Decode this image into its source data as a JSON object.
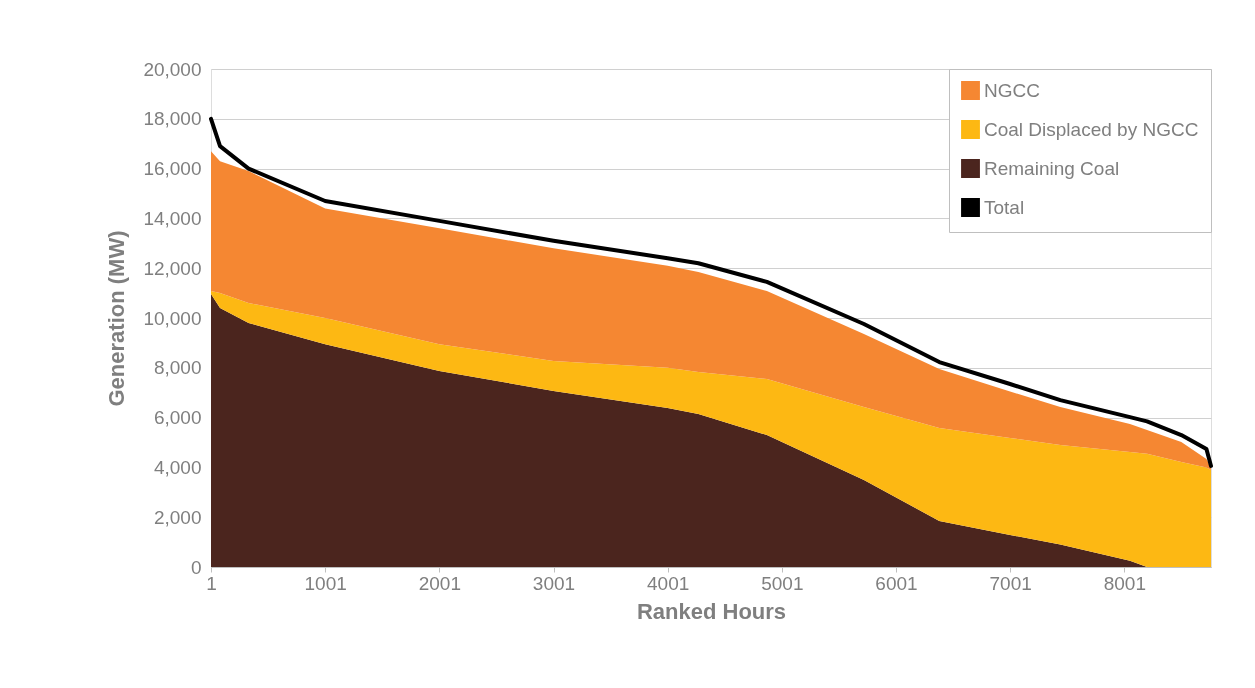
{
  "chart_data": {
    "type": "area",
    "stacked": true,
    "xlabel": "Ranked Hours",
    "ylabel": "Generation (MW)",
    "x": [
      1,
      80,
      330,
      1001,
      2001,
      3001,
      4001,
      4270,
      4870,
      5720,
      6380,
      7000,
      7440,
      8050,
      8200,
      8500,
      8720,
      8760
    ],
    "series": [
      {
        "name": "Remaining Coal",
        "color": "#4b251e",
        "values": [
          10960,
          10400,
          9800,
          8950,
          7870,
          7070,
          6390,
          6140,
          5300,
          3490,
          1850,
          1290,
          900,
          250,
          0,
          0,
          0,
          0
        ]
      },
      {
        "name": "Coal Displaced by NGCC",
        "color": "#fdb813",
        "values": [
          120,
          600,
          800,
          1050,
          1080,
          1200,
          1610,
          1690,
          2250,
          2940,
          3730,
          3890,
          4000,
          4370,
          4550,
          4220,
          4000,
          3900
        ]
      },
      {
        "name": "NGCC",
        "color": "#f58732",
        "values": [
          5620,
          5300,
          5300,
          4400,
          4650,
          4530,
          4100,
          4020,
          3530,
          2930,
          2370,
          1870,
          1530,
          1120,
          950,
          800,
          340,
          100
        ]
      },
      {
        "name": "Total",
        "type": "line",
        "color": "#000000",
        "values": [
          18000,
          16900,
          16000,
          14700,
          13900,
          13100,
          12400,
          12200,
          11450,
          9760,
          8230,
          7350,
          6700,
          6020,
          5850,
          5300,
          4740,
          4060
        ]
      }
    ],
    "xlim": [
      1,
      8760
    ],
    "xticks": [
      1,
      1001,
      2001,
      3001,
      4001,
      5001,
      6001,
      7001,
      8001
    ],
    "ylim": [
      0,
      20000
    ],
    "yticks": [
      {
        "value": 0,
        "label": "0"
      },
      {
        "value": 2000,
        "label": "2,000"
      },
      {
        "value": 4000,
        "label": "4,000"
      },
      {
        "value": 6000,
        "label": "6,000"
      },
      {
        "value": 8000,
        "label": "8,000"
      },
      {
        "value": 10000,
        "label": "10,000"
      },
      {
        "value": 12000,
        "label": "12,000"
      },
      {
        "value": 14000,
        "label": "14,000"
      },
      {
        "value": 16000,
        "label": "16,000"
      },
      {
        "value": 18000,
        "label": "18,000"
      },
      {
        "value": 20000,
        "label": "20,000"
      }
    ],
    "grid": "y",
    "legend": "top right"
  }
}
